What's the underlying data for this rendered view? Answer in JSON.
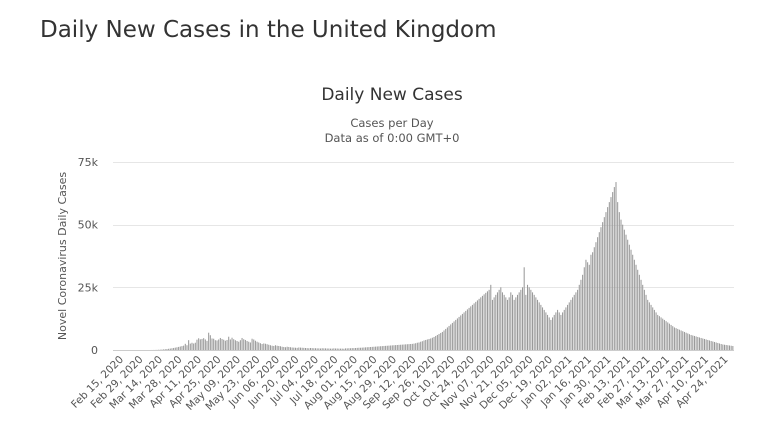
{
  "page": {
    "title": "Daily New Cases in the United Kingdom"
  },
  "chart_data": {
    "type": "bar",
    "title": "Daily New Cases",
    "subtitle_lines": [
      "Cases per Day",
      "Data as of 0:00 GMT+0"
    ],
    "xlabel": "",
    "ylabel": "Novel Coronavirus Daily Cases",
    "ylim": [
      0,
      75000
    ],
    "y_ticks": [
      0,
      25000,
      50000,
      75000
    ],
    "y_tick_labels": [
      "0",
      "25k",
      "50k",
      "75k"
    ],
    "grid": true,
    "legend": "none",
    "bar_color": "#999999",
    "x_tick_labels": [
      "Feb 15, 2020",
      "Feb 29, 2020",
      "Mar 14, 2020",
      "Mar 28, 2020",
      "Apr 11, 2020",
      "Apr 25, 2020",
      "May 09, 2020",
      "May 23, 2020",
      "Jun 06, 2020",
      "Jun 20, 2020",
      "Jul 04, 2020",
      "Jul 18, 2020",
      "Aug 01, 2020",
      "Aug 15, 2020",
      "Aug 29, 2020",
      "Sep 12, 2020",
      "Sep 26, 2020",
      "Oct 10, 2020",
      "Oct 24, 2020",
      "Nov 07, 2020",
      "Nov 21, 2020",
      "Dec 05, 2020",
      "Dec 19, 2020",
      "Jan 02, 2021",
      "Jan 16, 2021",
      "Jan 30, 2021",
      "Feb 13, 2021",
      "Feb 27, 2021",
      "Mar 13, 2021",
      "Mar 27, 2021",
      "Apr 10, 2021",
      "Apr 24, 2021"
    ],
    "series": [
      {
        "values": [
          0,
          0,
          0,
          0,
          0,
          0,
          0,
          0,
          0,
          0,
          0,
          0,
          0,
          0,
          0,
          0,
          0,
          0,
          0,
          0,
          0,
          0,
          0,
          10,
          20,
          40,
          60,
          90,
          130,
          180,
          240,
          310,
          390,
          480,
          580,
          690,
          810,
          940,
          1080,
          1230,
          1390,
          1560,
          1730,
          2470,
          1900,
          3920,
          2550,
          2890,
          2590,
          2900,
          4120,
          4680,
          4260,
          4410,
          4720,
          4210,
          3640,
          6900,
          5900,
          4600,
          4500,
          3900,
          3800,
          4200,
          4800,
          4400,
          4100,
          3700,
          4000,
          5300,
          4200,
          4900,
          4300,
          3900,
          3600,
          3300,
          3900,
          4800,
          4300,
          4000,
          3600,
          3300,
          3000,
          4500,
          4200,
          3700,
          3300,
          3000,
          2700,
          2400,
          2600,
          2500,
          2300,
          2100,
          1900,
          1700,
          1600,
          1900,
          1700,
          1600,
          1500,
          1300,
          1200,
          1100,
          1300,
          1200,
          1100,
          1000,
          950,
          900,
          850,
          1000,
          950,
          900,
          850,
          800,
          750,
          700,
          800,
          750,
          700,
          700,
          650,
          650,
          600,
          700,
          650,
          650,
          600,
          600,
          550,
          550,
          650,
          600,
          600,
          550,
          550,
          550,
          500,
          650,
          650,
          700,
          700,
          750,
          750,
          800,
          850,
          900,
          900,
          950,
          1000,
          1050,
          1100,
          1150,
          1200,
          1250,
          1300,
          1350,
          1400,
          1450,
          1500,
          1550,
          1600,
          1650,
          1700,
          1750,
          1800,
          1850,
          1900,
          1950,
          2000,
          2050,
          2100,
          2150,
          2200,
          2250,
          2300,
          2350,
          2400,
          2450,
          2550,
          2700,
          2900,
          3000,
          3300,
          3500,
          3800,
          4000,
          4200,
          4400,
          4600,
          4900,
          5200,
          5600,
          6000,
          6400,
          6800,
          7200,
          7800,
          8400,
          9000,
          9600,
          10200,
          10800,
          11400,
          12000,
          12600,
          13200,
          13800,
          14400,
          15000,
          15600,
          16200,
          16800,
          17400,
          18000,
          18600,
          19200,
          19800,
          20400,
          21000,
          21600,
          22200,
          22800,
          23400,
          24000,
          26000,
          20000,
          21000,
          22000,
          23000,
          24000,
          25000,
          23000,
          22000,
          21000,
          20000,
          21000,
          23000,
          22000,
          20000,
          21000,
          22000,
          23000,
          24000,
          25000,
          33000,
          22000,
          26000,
          25000,
          24000,
          23000,
          22000,
          21000,
          20000,
          19000,
          18000,
          17000,
          16000,
          15000,
          14000,
          13000,
          12000,
          13000,
          14000,
          15000,
          16000,
          15000,
          14000,
          15000,
          16000,
          17000,
          18000,
          19000,
          20000,
          21000,
          22000,
          23000,
          24000,
          26000,
          28000,
          30000,
          33000,
          36000,
          35000,
          34000,
          38000,
          39000,
          41000,
          43000,
          45000,
          47000,
          49000,
          51000,
          53000,
          55000,
          57000,
          59000,
          61000,
          63000,
          65000,
          67000,
          59000,
          55000,
          52000,
          50000,
          48000,
          46000,
          44000,
          42000,
          40000,
          38000,
          36000,
          34000,
          32000,
          30000,
          28000,
          26000,
          24000,
          22000,
          20000,
          19000,
          18000,
          17000,
          16000,
          15000,
          14000,
          13500,
          13000,
          12500,
          12000,
          11500,
          11000,
          10500,
          10000,
          9500,
          9000,
          8700,
          8400,
          8100,
          7800,
          7500,
          7200,
          6900,
          6600,
          6300,
          6000,
          5800,
          5600,
          5400,
          5200,
          5000,
          4800,
          4600,
          4400,
          4200,
          4000,
          3800,
          3600,
          3400,
          3200,
          3000,
          2800,
          2600,
          2400,
          2200,
          2100,
          2000,
          1900,
          1800,
          1700,
          1600
        ]
      }
    ]
  }
}
